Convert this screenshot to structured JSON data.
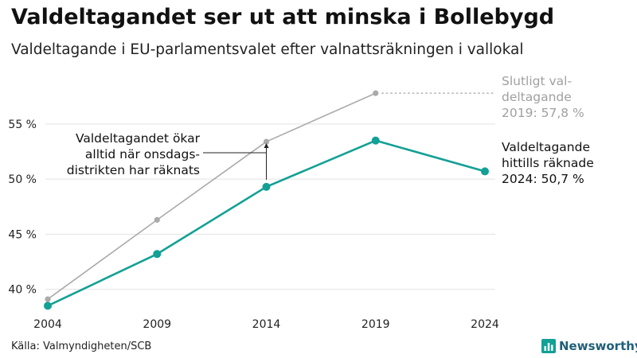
{
  "title": "Valdeltagandet ser ut att minska i Bollebygd",
  "subtitle": "Valdeltagande i EU-parlamentsvalet efter valnattsräkningen i vallokal",
  "source": "Källa: Valmyndigheten/SCB",
  "logo_text": "Newsworthy",
  "colors": {
    "final": "#aaaaaa",
    "election_night": "#13a095",
    "grid": "#e3e3e3",
    "text": "#222222"
  },
  "chart_data": {
    "type": "line",
    "x": [
      "2004",
      "2009",
      "2014",
      "2019",
      "2024"
    ],
    "y_ticks": [
      40,
      45,
      50,
      55
    ],
    "y_tick_labels": [
      "40 %",
      "45 %",
      "50 %",
      "55 %"
    ],
    "ylim": [
      38.0,
      59.0
    ],
    "grid": true,
    "series": [
      {
        "key": "final",
        "values": [
          39.1,
          46.3,
          53.4,
          57.8,
          null
        ]
      },
      {
        "key": "election_night",
        "values": [
          38.5,
          43.2,
          49.3,
          53.5,
          50.7
        ]
      }
    ],
    "annotations": {
      "arrow_note": [
        "Valdeltagandet ökar",
        "alltid när onsdags-",
        "distrikten har räknats"
      ],
      "final_label": [
        "Slutligt val-",
        "deltagande",
        "2019: 57,8 %"
      ],
      "current_label": [
        "Valdeltagande",
        "hittills räknade",
        "2024: 50,7 %"
      ]
    }
  }
}
